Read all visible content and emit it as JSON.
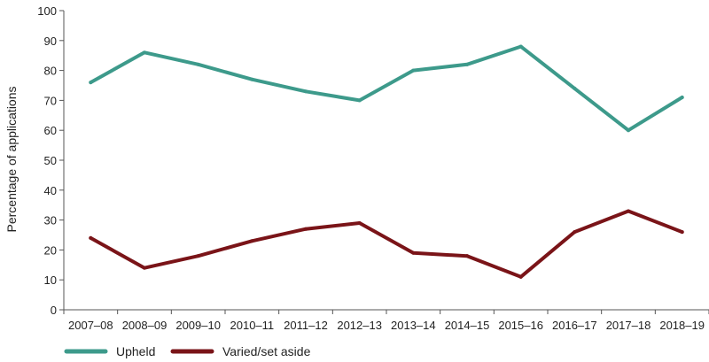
{
  "chart_data": {
    "type": "line",
    "title": "",
    "xlabel": "",
    "ylabel": "Percentage of applications",
    "ylim": [
      0,
      100
    ],
    "yticks": [
      0,
      10,
      20,
      30,
      40,
      50,
      60,
      70,
      80,
      90,
      100
    ],
    "categories": [
      "2007–08",
      "2008–09",
      "2009–10",
      "2010–11",
      "2011–12",
      "2012–13",
      "2013–14",
      "2014–15",
      "2015–16",
      "2016–17",
      "2017–18",
      "2018–19"
    ],
    "series": [
      {
        "name": "Upheld",
        "color": "#3d9a8b",
        "values": [
          76,
          86,
          82,
          77,
          73,
          70,
          80,
          82,
          88,
          74,
          60,
          71
        ]
      },
      {
        "name": "Varied/set aside",
        "color": "#7a1418",
        "values": [
          24,
          14,
          18,
          23,
          27,
          29,
          19,
          18,
          11,
          26,
          33,
          26
        ]
      }
    ],
    "grid": false,
    "legend_position": "bottom-left"
  }
}
